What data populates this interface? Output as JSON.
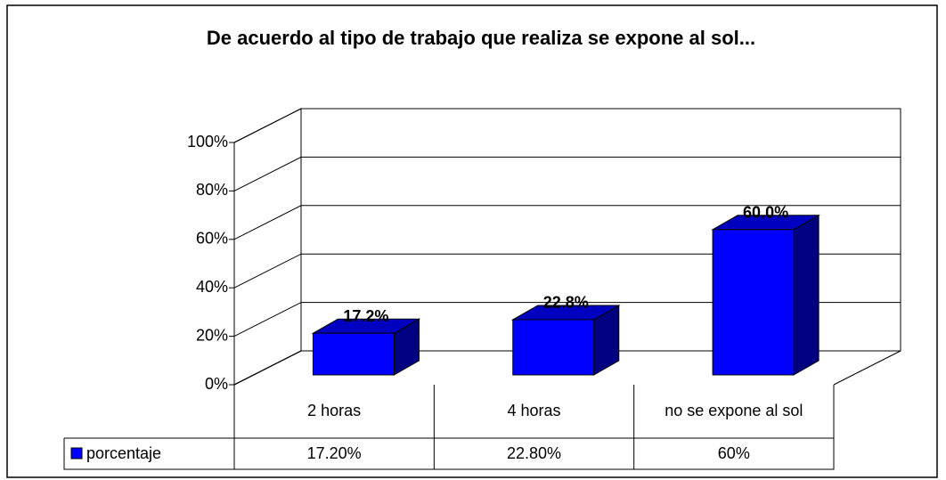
{
  "chart_data": {
    "type": "bar3d",
    "title": "De acuerdo al tipo de trabajo que realiza se expone al sol...",
    "categories": [
      "2 horas",
      "4 horas",
      "no se expone al sol"
    ],
    "series": [
      {
        "name": "porcentaje",
        "color": "#0000ff",
        "values": [
          17.2,
          22.8,
          60
        ],
        "value_labels": [
          "17.2%",
          "22.8%",
          "60.0%"
        ],
        "table_labels": [
          "17.20%",
          "22.80%",
          "60%"
        ]
      }
    ],
    "ylim": [
      0,
      100
    ],
    "yticks": [
      {
        "value": 0,
        "label": "0%"
      },
      {
        "value": 20,
        "label": "20%"
      },
      {
        "value": 40,
        "label": "40%"
      },
      {
        "value": 60,
        "label": "60%"
      },
      {
        "value": 80,
        "label": "80%"
      },
      {
        "value": 100,
        "label": "100%"
      }
    ],
    "grid": true,
    "legend": "table"
  }
}
